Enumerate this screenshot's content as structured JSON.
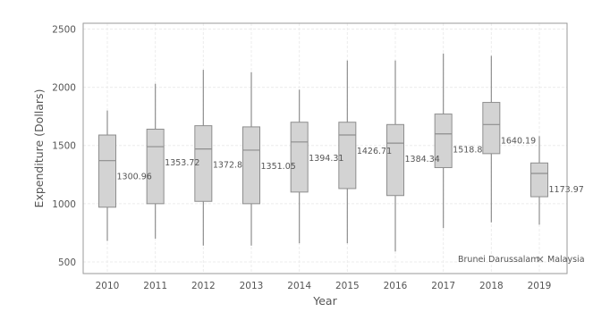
{
  "chart_data": {
    "type": "box",
    "xlabel": "Year",
    "ylabel": "Expenditure (Dollars)",
    "ylim": [
      400,
      2550
    ],
    "yticks": [
      500,
      1000,
      1500,
      2000,
      2500
    ],
    "grid": true,
    "categories": [
      "2010",
      "2011",
      "2012",
      "2013",
      "2014",
      "2015",
      "2016",
      "2017",
      "2018",
      "2019"
    ],
    "boxes": [
      {
        "category": "2010",
        "min": 680,
        "q1": 970,
        "median": 1370,
        "q3": 1590,
        "max": 1800,
        "label": "1300.96"
      },
      {
        "category": "2011",
        "min": 700,
        "q1": 1000,
        "median": 1490,
        "q3": 1640,
        "max": 2030,
        "label": "1353.72"
      },
      {
        "category": "2012",
        "min": 640,
        "q1": 1020,
        "median": 1470,
        "q3": 1670,
        "max": 2150,
        "label": "1372.8"
      },
      {
        "category": "2013",
        "min": 640,
        "q1": 1000,
        "median": 1460,
        "q3": 1660,
        "max": 2130,
        "label": "1351.05"
      },
      {
        "category": "2014",
        "min": 660,
        "q1": 1100,
        "median": 1530,
        "q3": 1700,
        "max": 1980,
        "label": "1394.31"
      },
      {
        "category": "2015",
        "min": 660,
        "q1": 1130,
        "median": 1590,
        "q3": 1700,
        "max": 2230,
        "label": "1426.71"
      },
      {
        "category": "2016",
        "min": 590,
        "q1": 1070,
        "median": 1520,
        "q3": 1680,
        "max": 2230,
        "label": "1384.34"
      },
      {
        "category": "2017",
        "min": 790,
        "q1": 1310,
        "median": 1600,
        "q3": 1770,
        "max": 2290,
        "label": "1518.8"
      },
      {
        "category": "2018",
        "min": 840,
        "q1": 1430,
        "median": 1680,
        "q3": 1870,
        "max": 2270,
        "label": "1640.19"
      },
      {
        "category": "2019",
        "min": 820,
        "q1": 1060,
        "median": 1260,
        "q3": 1350,
        "max": 1580,
        "label": "1173.97"
      }
    ],
    "legend": [
      {
        "name": "Brunei Darussalam",
        "marker": "none"
      },
      {
        "name": "Malaysia",
        "marker": "x"
      }
    ],
    "colors": {
      "box_fill": "#d3d3d3",
      "box_stroke": "#8e8e8e",
      "whisker": "#8e8e8e",
      "grid": "#ececec",
      "frame": "#9a9a9a",
      "text": "#555555"
    }
  }
}
